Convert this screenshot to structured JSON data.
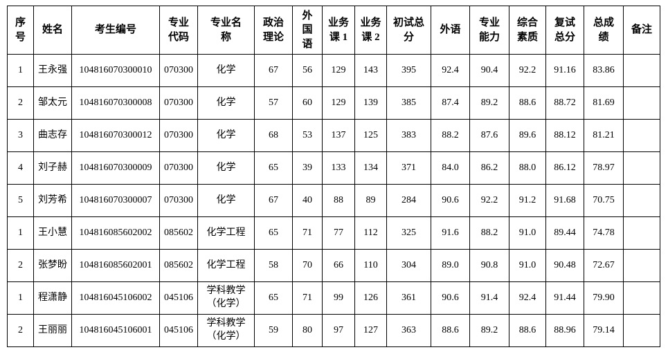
{
  "page": {
    "background_color": "#ffffff",
    "text_color": "#000000",
    "border_color": "#000000"
  },
  "table": {
    "columns": [
      {
        "key": "xuhao",
        "label": "序\n号"
      },
      {
        "key": "xingming",
        "label": "姓名"
      },
      {
        "key": "kaoshengbianhao",
        "label": "考生编号"
      },
      {
        "key": "zhuanyedaima",
        "label": "专业\n代码"
      },
      {
        "key": "zhuanyemingcheng",
        "label": "专业名\n称"
      },
      {
        "key": "zhengzhililun",
        "label": "政治\n理论"
      },
      {
        "key": "waiguoyu",
        "label": "外\n国\n语"
      },
      {
        "key": "yewuke1",
        "label": "业务\n课 1"
      },
      {
        "key": "yewuke2",
        "label": "业务\n课 2"
      },
      {
        "key": "chushizongfen",
        "label": "初试总\n分"
      },
      {
        "key": "waiyu",
        "label": "外语"
      },
      {
        "key": "zhuanyenengli",
        "label": "专业\n能力"
      },
      {
        "key": "zonghesuzhi",
        "label": "综合\n素质"
      },
      {
        "key": "fushizongfen",
        "label": "复试\n总分"
      },
      {
        "key": "zongchengji",
        "label": "总成\n绩"
      },
      {
        "key": "beizhu",
        "label": "备注"
      }
    ],
    "rows": [
      [
        "1",
        "王永强",
        "104816070300010",
        "070300",
        "化学",
        "67",
        "56",
        "129",
        "143",
        "395",
        "92.4",
        "90.4",
        "92.2",
        "91.16",
        "83.86",
        ""
      ],
      [
        "2",
        "邹太元",
        "104816070300008",
        "070300",
        "化学",
        "57",
        "60",
        "129",
        "139",
        "385",
        "87.4",
        "89.2",
        "88.6",
        "88.72",
        "81.69",
        ""
      ],
      [
        "3",
        "曲志存",
        "104816070300012",
        "070300",
        "化学",
        "68",
        "53",
        "137",
        "125",
        "383",
        "88.2",
        "87.6",
        "89.6",
        "88.12",
        "81.21",
        ""
      ],
      [
        "4",
        "刘子赫",
        "104816070300009",
        "070300",
        "化学",
        "65",
        "39",
        "133",
        "134",
        "371",
        "84.0",
        "86.2",
        "88.0",
        "86.12",
        "78.97",
        ""
      ],
      [
        "5",
        "刘芳希",
        "104816070300007",
        "070300",
        "化学",
        "67",
        "40",
        "88",
        "89",
        "284",
        "90.6",
        "92.2",
        "91.2",
        "91.68",
        "70.75",
        ""
      ],
      [
        "1",
        "王小慧",
        "104816085602002",
        "085602",
        "化学工程",
        "65",
        "71",
        "77",
        "112",
        "325",
        "91.6",
        "88.2",
        "91.0",
        "89.44",
        "74.78",
        ""
      ],
      [
        "2",
        "张梦盼",
        "104816085602001",
        "085602",
        "化学工程",
        "58",
        "70",
        "66",
        "110",
        "304",
        "89.0",
        "90.8",
        "91.0",
        "90.48",
        "72.67",
        ""
      ],
      [
        "1",
        "程潇静",
        "104816045106002",
        "045106",
        "学科教学\n（化学）",
        "65",
        "71",
        "99",
        "126",
        "361",
        "90.6",
        "91.4",
        "92.4",
        "91.44",
        "79.90",
        ""
      ],
      [
        "2",
        "王丽丽",
        "104816045106001",
        "045106",
        "学科教学\n（化学）",
        "59",
        "80",
        "97",
        "127",
        "363",
        "88.6",
        "89.2",
        "88.6",
        "88.96",
        "79.14",
        ""
      ]
    ]
  }
}
